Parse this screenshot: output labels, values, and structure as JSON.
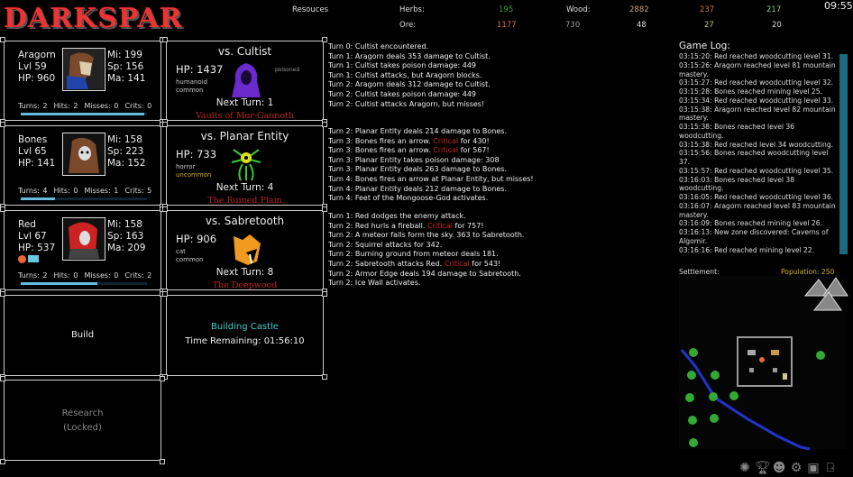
{
  "app": {
    "logo": "DARKSPAR",
    "clock": "09:55"
  },
  "resources": {
    "label": "Resouces",
    "row1": {
      "label": "Herbs:",
      "herbs": "195",
      "wood_label": "Wood:",
      "wood": "2882",
      "v3": "237",
      "v4": "217"
    },
    "row2": {
      "label": "Ore:",
      "ore": "1177",
      "v2": "730",
      "v3": "48",
      "v4": "27",
      "v5": "20"
    },
    "colors": {
      "herbs": "#3a9a3a",
      "wood": "#c9a080",
      "v3": "#c87050",
      "v4": "#88c888",
      "ore": "#d07050",
      "v2": "#999999",
      "yel": "#c8c878"
    }
  },
  "heroes": [
    {
      "name": "Aragorn",
      "level": "Lvl 59",
      "hp": "HP: 960",
      "mi": "Mi: 199",
      "sp": "Sp: 156",
      "ma": "Ma: 141",
      "summary": "Turns: 2  Hits: 2  Misses: 0  Crits: 0",
      "progress": 0.98
    },
    {
      "name": "Bones",
      "level": "Lvl 65",
      "hp": "HP: 141",
      "mi": "Mi: 158",
      "sp": "Sp: 223",
      "ma": "Ma: 152",
      "summary": "Turns: 4  Hits: 0  Misses: 1  Crits: 5",
      "progress": 0.27
    },
    {
      "name": "Red",
      "level": "Lvl 67",
      "hp": "HP: 537",
      "mi": "Mi: 158",
      "sp": "Sp: 163",
      "ma": "Ma: 209",
      "summary": "Turns: 2  Hits: 0  Misses: 0  Crits: 2",
      "progress": 0.61
    }
  ],
  "enemies": [
    {
      "title": "vs. Cultist",
      "hp": "HP: 1437",
      "type": "humanoid",
      "rarity": "common",
      "status": "poisoned",
      "next": "Next Turn: 1",
      "zone": "Vaults of Mor-Gannoth",
      "rarity_color": "#cccccc"
    },
    {
      "title": "vs. Planar Entity",
      "hp": "HP: 733",
      "type": "horror",
      "rarity": "uncommon",
      "status": "",
      "next": "Next Turn: 4",
      "zone": "The Ruined Plain",
      "rarity_color": "#d4b030"
    },
    {
      "title": "vs. Sabretooth",
      "hp": "HP: 906",
      "type": "cat",
      "rarity": "common",
      "status": "",
      "next": "Next Turn: 8",
      "zone": "The Deepwood",
      "rarity_color": "#cccccc"
    }
  ],
  "build": {
    "label": "Build",
    "status": "Building Castle",
    "time": "Time Remaining: 01:56:10"
  },
  "research": {
    "label": "Research",
    "locked": "(Locked)"
  },
  "combat_logs": [
    [
      [
        "Turn 0: Cultist encountered."
      ],
      [
        "Turn 1: Aragorn deals 353 damage to Cultist."
      ],
      [
        "Turn 1: Cultist takes poison damage: 449"
      ],
      [
        "Turn 1: Cultist attacks, but Aragorn blocks."
      ],
      [
        "Turn 2: Aragorn deals 312 damage to Cultist."
      ],
      [
        "Turn 2: Cultist takes poison damage: 449"
      ],
      [
        "Turn 2: Cultist attacks Aragorn, but misses!"
      ]
    ],
    [
      [
        "Turn 2: Planar Entity deals 214 damage to Bones."
      ],
      [
        "Turn 3: Bones fires an arrow. ",
        "Critical",
        " for 430!"
      ],
      [
        "Turn 3: Bones fires an arrow. ",
        "Critical",
        " for 567!"
      ],
      [
        "Turn 3: Planar Entity takes poison damage: 308"
      ],
      [
        "Turn 3: Planar Entity deals 263 damage to Bones."
      ],
      [
        "Turn 4: Bones fires an arrow at Planar Entity, but misses!"
      ],
      [
        "Turn 4: Planar Entity deals 212 damage to Bones."
      ],
      [
        "Turn 4: Feet of the Mongoose-God activates."
      ]
    ],
    [
      [
        "Turn 1: Red dodges the enemy attack."
      ],
      [
        "Turn 2: Red hurls a fireball. ",
        "Critical",
        " for 757!"
      ],
      [
        "Turn 2: A meteor falls form the sky. 363 to Sabretooth."
      ],
      [
        "Turn 2: Squirrel attacks for 342."
      ],
      [
        "Turn 2: Burning ground from meteor deals 181."
      ],
      [
        "Turn 2: Sabretooth attacks Red. ",
        "Critical",
        " for 543!"
      ],
      [
        "Turn 2: Armor Edge deals 194 damage to Sabretooth."
      ],
      [
        "Turn 2: Ice Wall activates."
      ]
    ]
  ],
  "game_log": {
    "title": "Game Log:",
    "entries": [
      "03:15:20: Red reached woodcutting level 31.",
      "03:15:26: Aragorn reached level 81 mountain mastery.",
      "03:15:27: Red reached woodcutting level 32.",
      "03:15:28: Bones reached mining level 25.",
      "03:15:34: Red reached woodcutting level 33.",
      "03:15:38: Aragorn reached level 82 mountain mastery.",
      "03:15:38: Bones reached level 36 woodcutting.",
      "03:15:38: Red reached level 34 woodcutting.",
      "03:15:56: Bones reached woodcutting level 37.",
      "03:15:57: Red reached woodcutting level 35.",
      "03:16:03: Bones reached level 38 woodcutting.",
      "03:16:05: Red reached woodcutting level 36.",
      "03:16:07: Aragorn reached level 83 mountain mastery.",
      "03:16:09: Bones reached mining level 26.",
      "03:16:13: New zone discovered: Caverns of Algomir.",
      "03:16:16: Red reached mining level 22."
    ]
  },
  "settlement": {
    "label": "Settlement:",
    "population": "Population: 250"
  },
  "toolbar": [
    "skills-icon",
    "trophy-icon",
    "mask-icon",
    "gear-icon",
    "save-icon",
    "exit-icon"
  ]
}
